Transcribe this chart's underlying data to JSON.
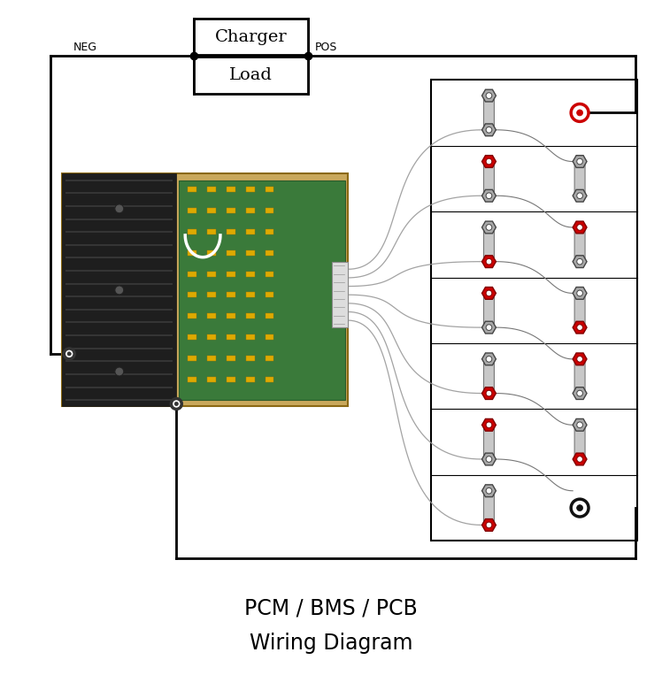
{
  "title_line1": "PCM / BMS / PCB",
  "title_line2": "Wiring Diagram",
  "title_fontsize": 17,
  "bg_color": "#ffffff",
  "charger_label": "Charger",
  "load_label": "Load",
  "neg_label": "NEG",
  "pos_label": "POS",
  "n_cells": 7,
  "wire_color": "#888888",
  "red_color": "#cc0000",
  "black_color": "#111111",
  "lw_thick": 2.0,
  "lw_thin": 1.0
}
